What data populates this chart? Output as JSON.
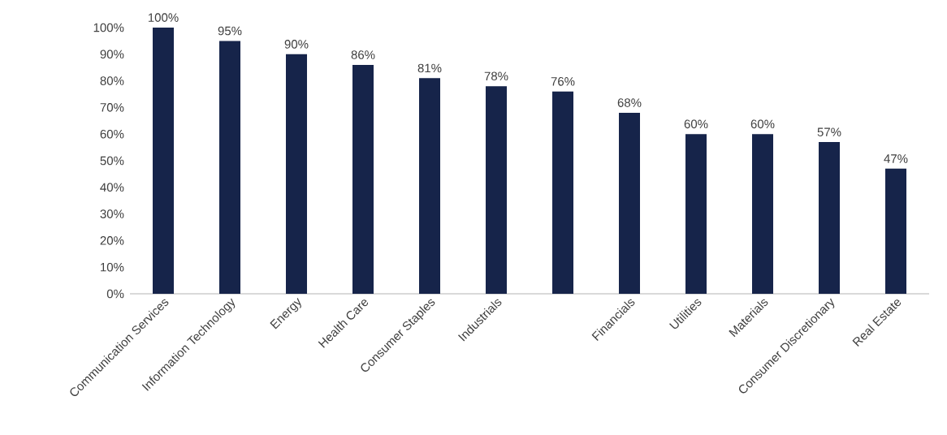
{
  "chart_data": {
    "type": "bar",
    "categories": [
      "Communication Services",
      "Information Technology",
      "Energy",
      "Health Care",
      "Consumer Staples",
      "Industrials",
      null,
      "Financials",
      "Utilities",
      "Materials",
      "Consumer Discretionary",
      "Real Estate"
    ],
    "values": [
      100,
      95,
      90,
      86,
      81,
      78,
      76,
      68,
      60,
      60,
      57,
      47
    ],
    "value_labels": [
      "100%",
      "95%",
      "90%",
      "86%",
      "81%",
      "78%",
      "76%",
      "68%",
      "60%",
      "60%",
      "57%",
      "47%"
    ],
    "color": "#16244a",
    "ylim": [
      0,
      100
    ],
    "yticks": [
      {
        "value": 0,
        "label": "0%"
      },
      {
        "value": 10,
        "label": "10%"
      },
      {
        "value": 20,
        "label": "20%"
      },
      {
        "value": 30,
        "label": "30%"
      },
      {
        "value": 40,
        "label": "40%"
      },
      {
        "value": 50,
        "label": "50%"
      },
      {
        "value": 60,
        "label": "60%"
      },
      {
        "value": 70,
        "label": "70%"
      },
      {
        "value": 80,
        "label": "80%"
      },
      {
        "value": 90,
        "label": "90%"
      },
      {
        "value": 100,
        "label": "100%"
      }
    ],
    "grid": false
  }
}
